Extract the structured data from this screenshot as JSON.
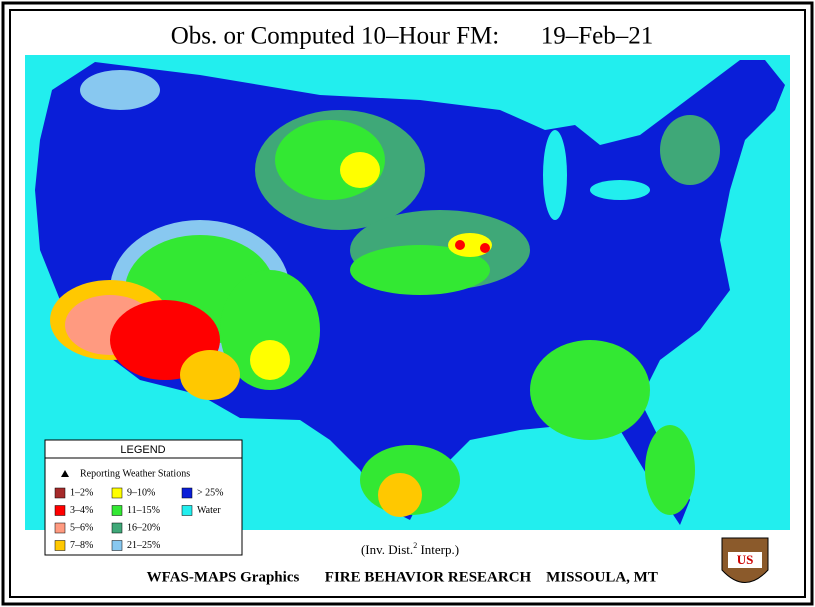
{
  "title": "Obs. or Computed 10–Hour FM:",
  "date": "19–Feb–21",
  "legend": {
    "title": "LEGEND",
    "stations": "Reporting Weather Stations",
    "items": [
      {
        "label": "1–2%",
        "color": "#a52a2a"
      },
      {
        "label": "3–4%",
        "color": "#ff0000"
      },
      {
        "label": "5–6%",
        "color": "#ff9a80"
      },
      {
        "label": "7–8%",
        "color": "#ffc800"
      },
      {
        "label": "9–10%",
        "color": "#ffff00"
      },
      {
        "label": "11–15%",
        "color": "#33e833"
      },
      {
        "label": "16–20%",
        "color": "#3fa878"
      },
      {
        "label": "21–25%",
        "color": "#88c8f0"
      },
      {
        "label": "> 25%",
        "color": "#0a1ed8"
      },
      {
        "label": "Water",
        "color": "#22eeee"
      }
    ]
  },
  "footer": {
    "note_prefix": "(Inv. Dist.",
    "note_sup": "2",
    "note_suffix": " Interp.)",
    "credit": "WFAS-MAPS Graphics",
    "org": "FIRE BEHAVIOR RESEARCH",
    "place": "MISSOULA, MT"
  },
  "logo": "US"
}
